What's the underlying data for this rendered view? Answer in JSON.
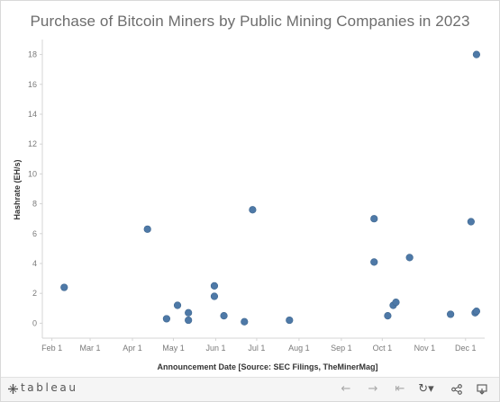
{
  "chart_data": {
    "type": "scatter",
    "title": "Purchase of Bitcoin Miners by Public Mining Companies in 2023",
    "xlabel": "Announcement Date [Source: SEC Filings, TheMinerMag]",
    "ylabel": "Hashrate (EH/s)",
    "x_ticks": [
      "Feb 1",
      "Mar 1",
      "Apr 1",
      "May 1",
      "Jun 1",
      "Jul 1",
      "Aug 1",
      "Sep 1",
      "Oct 1",
      "Nov 1",
      "Dec 1"
    ],
    "x_range": [
      "2023-01-25",
      "2023-12-15"
    ],
    "y_ticks": [
      0,
      2,
      4,
      6,
      8,
      10,
      12,
      14,
      16,
      18
    ],
    "ylim": [
      -1,
      19
    ],
    "grid": false,
    "points": [
      {
        "x": "2023-02-10",
        "y": 2.4
      },
      {
        "x": "2023-04-12",
        "y": 6.3
      },
      {
        "x": "2023-04-26",
        "y": 0.3
      },
      {
        "x": "2023-05-04",
        "y": 1.2
      },
      {
        "x": "2023-05-12",
        "y": 0.7
      },
      {
        "x": "2023-05-12",
        "y": 0.2
      },
      {
        "x": "2023-05-31",
        "y": 2.5
      },
      {
        "x": "2023-05-31",
        "y": 1.8
      },
      {
        "x": "2023-06-07",
        "y": 0.5
      },
      {
        "x": "2023-06-22",
        "y": 0.1
      },
      {
        "x": "2023-06-28",
        "y": 7.6
      },
      {
        "x": "2023-07-25",
        "y": 0.2
      },
      {
        "x": "2023-09-25",
        "y": 7.0
      },
      {
        "x": "2023-09-25",
        "y": 4.1
      },
      {
        "x": "2023-10-05",
        "y": 0.5
      },
      {
        "x": "2023-10-09",
        "y": 1.2
      },
      {
        "x": "2023-10-11",
        "y": 1.4
      },
      {
        "x": "2023-10-21",
        "y": 4.4
      },
      {
        "x": "2023-11-20",
        "y": 0.6
      },
      {
        "x": "2023-12-05",
        "y": 6.8
      },
      {
        "x": "2023-12-08",
        "y": 0.7
      },
      {
        "x": "2023-12-09",
        "y": 0.8
      },
      {
        "x": "2023-12-09",
        "y": 18.0
      }
    ],
    "point_color": "#4e79a7"
  },
  "toolbar": {
    "logo_text": "tableau",
    "icons": [
      "undo-icon",
      "redo-icon",
      "revert-icon",
      "refresh-icon",
      "share-icon",
      "download-icon"
    ]
  }
}
